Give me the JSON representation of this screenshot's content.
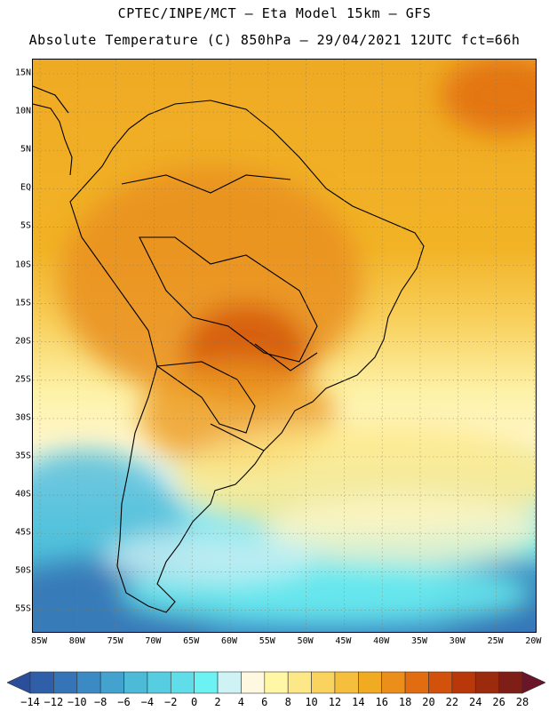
{
  "header": {
    "line1": "CPTEC/INPE/MCT –  Eta Model 15km – GFS",
    "line2": "Absolute Temperature (C) 850hPa – 29/04/2021 12UTC fct=66h"
  },
  "map": {
    "region": "South America",
    "lat_labels": [
      "15N",
      "10N",
      "5N",
      "EQ",
      "5S",
      "10S",
      "15S",
      "20S",
      "25S",
      "30S",
      "35S",
      "40S",
      "45S",
      "50S",
      "55S"
    ],
    "lon_labels": [
      "85W",
      "80W",
      "75W",
      "70W",
      "65W",
      "60W",
      "55W",
      "50W",
      "45W",
      "40W",
      "35W",
      "30W",
      "25W",
      "20W"
    ]
  },
  "legend": {
    "labels": [
      "-14",
      "-12",
      "-10",
      "-8",
      "-6",
      "-4",
      "-2",
      "0",
      "2",
      "4",
      "6",
      "8",
      "10",
      "12",
      "14",
      "16",
      "18",
      "20",
      "22",
      "24",
      "26",
      "28"
    ],
    "colors": [
      "#2a4e9a",
      "#2f5fa8",
      "#3574b6",
      "#3c8ac4",
      "#44a2cf",
      "#4dbad8",
      "#56cde0",
      "#5fdee9",
      "#6cf2f2",
      "#cff3f5",
      "#fff8e0",
      "#fff6a6",
      "#fde887",
      "#fad35e",
      "#f5bf3d",
      "#f0ab22",
      "#ec8f1a",
      "#e26d10",
      "#d2520c",
      "#b8380a",
      "#9c2a0c",
      "#7e1e16",
      "#6a1528"
    ]
  }
}
